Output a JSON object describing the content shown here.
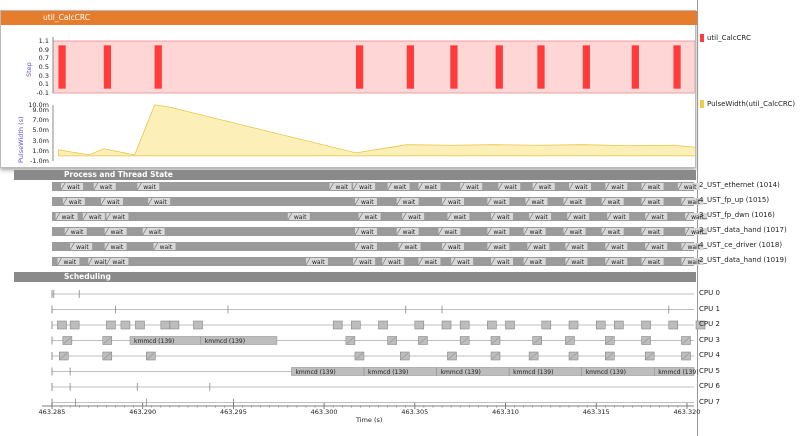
{
  "graph": {
    "title": "util_CalcCRC",
    "step_ylabel": "Step",
    "step_ticks": [
      "1.1",
      "0.9",
      "0.7",
      "0.5",
      "0.3",
      "0.1",
      "-0.1"
    ],
    "pulse_ylabel": "PulseWidth (s)",
    "pulse_ticks": [
      "10.0m",
      "9.0m",
      "7.0m",
      "5.0m",
      "3.0m",
      "1.0m",
      "-1.0m"
    ],
    "legend_step": "util_CalcCRC",
    "legend_pulse": "PulseWidth(util_CalcCRC)",
    "colors": {
      "header": "#e57d2c",
      "step_bg": "#ffd6d6",
      "step_bar": "#ff3b3b",
      "pulse_fill": "#fdefb8",
      "pulse_line": "#e8c64a"
    }
  },
  "chart_data": {
    "type": "area",
    "step_series": {
      "name": "util_CalcCRC",
      "pulses_start": [
        463.2853,
        463.2878,
        463.2906,
        463.3017,
        463.3045,
        463.3069,
        463.3094,
        463.3117,
        463.3142,
        463.3169,
        463.3192,
        463.321
      ],
      "pulse_width": 0.0004,
      "ylim": [
        -0.1,
        1.1
      ]
    },
    "pulse_series": {
      "name": "PulseWidth(util_CalcCRC)",
      "x": [
        463.2853,
        463.287,
        463.2878,
        463.2895,
        463.2906,
        463.2914,
        463.3017,
        463.3045,
        463.3069,
        463.3094,
        463.3117,
        463.3142,
        463.3169,
        463.3192,
        463.321
      ],
      "y": [
        1.2,
        0.2,
        1.4,
        0.2,
        10.0,
        9.6,
        0.6,
        2.2,
        2.1,
        2.2,
        2.1,
        2.2,
        2.0,
        2.1,
        1.5
      ],
      "ylim": [
        -1.0,
        10.0
      ]
    },
    "xlim": [
      463.285,
      463.3205
    ]
  },
  "process": {
    "title": "Process and Thread State",
    "wait_label": "wait",
    "threads": [
      {
        "name": "2_UST_ethernet (1014)",
        "waits": [
          463.2855,
          463.2873,
          463.2897,
          463.3003,
          463.3016,
          463.3035,
          463.3052,
          463.3075,
          463.3096,
          463.3115,
          463.3135,
          463.3155,
          463.3175,
          463.3195
        ]
      },
      {
        "name": "4_UST_fp_up (1015)",
        "waits": [
          463.2856,
          463.2877,
          463.2903,
          463.3017,
          463.304,
          463.3065,
          463.309,
          463.3111,
          463.3132,
          463.3153,
          463.3175,
          463.3197
        ]
      },
      {
        "name": "3_UST_fp_dwn (1016)",
        "waits": [
          463.2852,
          463.2867,
          463.288,
          463.298,
          463.3019,
          463.3043,
          463.3068,
          463.3092,
          463.3113,
          463.3134,
          463.3156,
          463.3177,
          463.3199
        ]
      },
      {
        "name": "2_UST_data_hand (1017)",
        "waits": [
          463.2857,
          463.2879,
          463.29,
          463.3017,
          463.304,
          463.3063,
          463.309,
          463.311,
          463.3132,
          463.3153,
          463.3175,
          463.3199
        ]
      },
      {
        "name": "4_UST_ce_driver (1018)",
        "waits": [
          463.286,
          463.2879,
          463.2906,
          463.3017,
          463.3041,
          463.3065,
          463.309,
          463.3112,
          463.3133,
          463.3155,
          463.3177,
          463.3197
        ]
      },
      {
        "name": "2_UST_data_hand (1019)",
        "waits": [
          463.2853,
          463.287,
          463.288,
          463.299,
          463.3016,
          463.3032,
          463.3052,
          463.307,
          463.3092,
          463.311,
          463.3133,
          463.3155,
          463.3175,
          463.3197
        ]
      }
    ]
  },
  "scheduling": {
    "title": "Scheduling",
    "kmmcd_label": "kmmcd (139)",
    "cpus": [
      {
        "name": "CPU 0",
        "blocks": []
      },
      {
        "name": "CPU 1",
        "blocks": []
      },
      {
        "name": "CPU 2",
        "blocks": []
      },
      {
        "name": "CPU 3",
        "blocks": []
      },
      {
        "name": "CPU 4",
        "blocks": []
      },
      {
        "name": "CPU 5",
        "blocks": []
      },
      {
        "name": "CPU 6",
        "blocks": []
      },
      {
        "name": "CPU 7",
        "blocks": []
      }
    ],
    "kmmcd_cpu3": [
      [
        463.2893,
        463.2932
      ],
      [
        463.2932,
        463.2974
      ]
    ],
    "kmmcd_cpu5": [
      [
        463.2982,
        463.3022
      ],
      [
        463.3022,
        463.3062
      ],
      [
        463.3062,
        463.3102
      ],
      [
        463.3102,
        463.3142
      ],
      [
        463.3142,
        463.3182
      ],
      [
        463.3182,
        463.3205
      ]
    ]
  },
  "axis": {
    "label": "Time (s)",
    "ticks": [
      "463.285",
      "463.290",
      "463.295",
      "463.300",
      "463.305",
      "463.310",
      "463.315",
      "463.320"
    ]
  }
}
